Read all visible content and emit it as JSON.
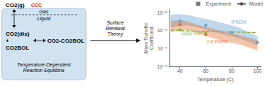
{
  "chart_data": {
    "type": "scatter",
    "xlabel": "Temperature (C)",
    "ylabel": "Mass Transfer\nCoefficient",
    "log": "y",
    "grid": false,
    "xlim": [
      32,
      103
    ],
    "xticks": [
      40,
      60,
      80,
      100
    ],
    "ylim": [
      1e-08,
      1.5e-05
    ],
    "yticks": [
      {
        "value": 1e-08,
        "label": "10⁻⁸"
      },
      {
        "value": 1e-07,
        "label": "10⁻⁷"
      },
      {
        "value": 1e-06,
        "label": "10⁻⁶"
      },
      {
        "value": 1e-05,
        "label": "10⁻⁵"
      }
    ],
    "legend": "upper right",
    "legend_entries": [
      {
        "name": "Experiment",
        "marker": "square",
        "color": "#555555"
      },
      {
        "name": "Model",
        "line_style": "solid",
        "color": "#555555"
      }
    ],
    "series": [
      {
        "type": "band",
        "color": "#5599cc",
        "x": [
          33,
          38,
          45,
          55,
          65,
          75,
          85,
          100
        ],
        "upper": [
          8e-06,
          8.5e-06,
          8e-06,
          5.5e-06,
          3.8e-06,
          2.5e-06,
          1.6e-06,
          5e-07
        ],
        "lower": [
          1.5e-06,
          1.8e-06,
          2e-06,
          1.5e-06,
          9e-07,
          6e-07,
          4e-07,
          1.5e-07
        ]
      },
      {
        "type": "band",
        "color": "#dd6622",
        "x": [
          33,
          38,
          45,
          55,
          65,
          75,
          85,
          100
        ],
        "upper": [
          3.5e-06,
          3.8e-06,
          3.5e-06,
          2e-06,
          1.3e-06,
          9e-07,
          6e-07,
          3e-07
        ],
        "lower": [
          8e-07,
          1e-06,
          1.1e-06,
          7e-07,
          4e-07,
          2.5e-07,
          1.8e-07,
          8e-08
        ]
      },
      {
        "type": "line",
        "line_style": "dashed",
        "color": "#88aa33",
        "x": [
          33,
          40,
          60,
          80,
          100
        ],
        "values": [
          1.1e-06,
          1.05e-06,
          9e-07,
          8.5e-07,
          8e-07
        ]
      },
      {
        "type": "scatter",
        "marker": "square",
        "color": "#5599cc",
        "x": [
          40,
          60,
          80,
          100
        ],
        "values": [
          3.5e-06,
          2e-06,
          8e-07,
          2.2e-07
        ]
      },
      {
        "type": "scatter",
        "marker": "square",
        "color": "#dd6622",
        "x": [
          40,
          60
        ],
        "values": [
          2.2e-06,
          6e-07
        ]
      },
      {
        "type": "scatter",
        "marker": "square",
        "color": "#88aa33",
        "x": [
          40,
          60
        ],
        "values": [
          1.1e-06,
          7.5e-07
        ]
      }
    ],
    "annotations": [
      {
        "text": "IPADM",
        "x": 79,
        "y": 3.2e-06,
        "color": "#5599cc"
      },
      {
        "text": "DBU-Hex",
        "x": 41,
        "y": 7.5e-07,
        "color": "#88aa33"
      },
      {
        "text": "2-EEMPA",
        "x": 60,
        "y": 2.5e-07,
        "color": "#dd6622"
      }
    ],
    "schematic": {
      "color": "#cce0f0",
      "edge_color": "#99bbdd",
      "texts": [
        {
          "text": "CO2(g)"
        },
        {
          "text": "CCC",
          "color": "#cc2200"
        },
        {
          "text": "Gas"
        },
        {
          "text": "Liquid"
        },
        {
          "text": "CO2(dis)"
        },
        {
          "text": "+"
        },
        {
          "text": "CO2BOL"
        },
        {
          "text": "CO2-CO2BOL"
        },
        {
          "text": "Temperature-Dependent\nReaction Equilibria"
        },
        {
          "text": "Surface\nRenewal\nTheory"
        }
      ]
    }
  }
}
